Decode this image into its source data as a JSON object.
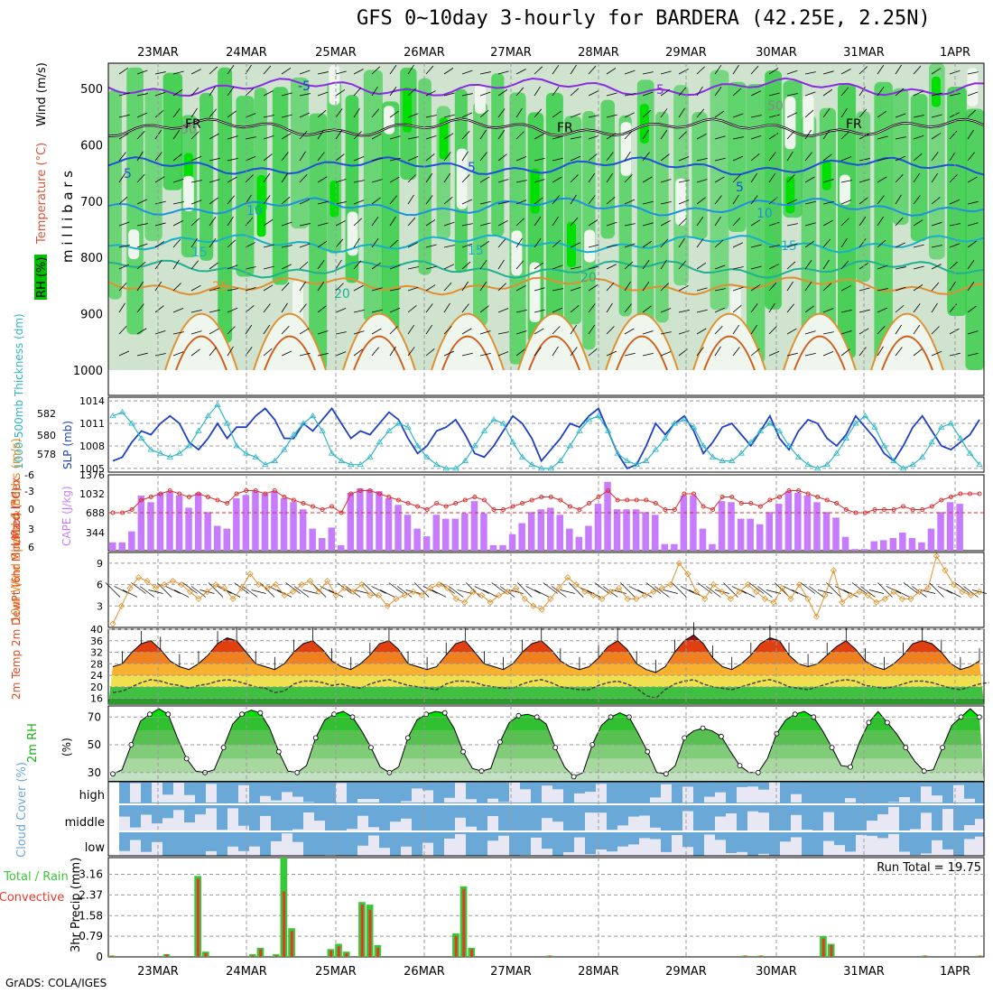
{
  "title": "GFS 0~10day 3-hourly for BARDERA (42.25E, 2.25N)",
  "credit": "GrADS: COLA/IGES",
  "colors": {
    "rh_green": "#2ecc40",
    "rh_light": "#b9dcb9",
    "slp": "#1e3fc7",
    "thickness": "#2bb6c6",
    "cape": "#c77cff",
    "lifted": "#d83030",
    "wind10": "#e0912a",
    "temp": "#e4451a",
    "cloud": "#6aa8d8",
    "rain_total": "#38c838",
    "rain_conv": "#e23a2a"
  },
  "chart_data": [
    {
      "type": "heatmap",
      "name_key": "upper",
      "ylabel": "m i l l i b a r s",
      "side_labels": [
        "RH (%)",
        "Temperature (°C)",
        "Wind (m/s)"
      ],
      "yticks": [
        500,
        600,
        700,
        800,
        900,
        1000
      ],
      "ylim": [
        455,
        1000
      ],
      "dates": [
        "23MAR",
        "24MAR",
        "25MAR",
        "26MAR",
        "27MAR",
        "28MAR",
        "29MAR",
        "30MAR",
        "31MAR",
        "1APR"
      ],
      "isotherms": [
        {
          "label": "-5",
          "p": 498,
          "color": "#8a2be2"
        },
        {
          "label": "FR",
          "p": 570,
          "color": "#000000"
        },
        {
          "label": "5",
          "p": 638,
          "color": "#1e50d8"
        },
        {
          "label": "10",
          "p": 710,
          "color": "#1e90e0"
        },
        {
          "label": "15",
          "p": 775,
          "color": "#18b0c8"
        },
        {
          "label": "20",
          "p": 820,
          "color": "#20b090"
        },
        {
          "label": "25",
          "p": 850,
          "color": "#e09030"
        }
      ],
      "contour_labels": [
        "-5",
        "-5",
        "FR",
        "FR",
        "FR",
        "5",
        "5",
        "5",
        "10",
        "10",
        "15",
        "15",
        "15",
        "20",
        "20",
        "25",
        "50",
        "50"
      ]
    },
    {
      "type": "line",
      "name_key": "slp",
      "ylabel_left": "1000-500mb Thickness (dm)",
      "ylabel_right": "SLP (mb)",
      "yticks_left": [
        578,
        580,
        582
      ],
      "yticks_right": [
        1005,
        1008,
        1011,
        1014
      ],
      "ylim": [
        1004.5,
        1014.5
      ],
      "series": [
        {
          "name": "SLP",
          "values": [
            1006,
            1006.5,
            1008.5,
            1010,
            1009.5,
            1011,
            1012,
            1011,
            1008.5,
            1007.5,
            1009,
            1011,
            1009,
            1010.5,
            1010.5,
            1012,
            1013,
            1011.5,
            1009,
            1009,
            1011,
            1010,
            1011.5,
            1013,
            1011,
            1009,
            1010,
            1009.5,
            1011,
            1012.5,
            1011.5,
            1009,
            1007,
            1008,
            1010,
            1010.5,
            1011.5,
            1009.5,
            1007,
            1006.5,
            1008,
            1010,
            1012,
            1011,
            1009,
            1006,
            1007.5,
            1009,
            1011,
            1010.5,
            1012,
            1013,
            1010,
            1007,
            1005,
            1005.5,
            1008,
            1011,
            1009.5,
            1011,
            1012,
            1010,
            1007,
            1008.5,
            1010.5,
            1011,
            1009.5,
            1008,
            1010,
            1012,
            1009,
            1007.5,
            1010,
            1011.5,
            1011,
            1009,
            1008,
            1009.5,
            1012,
            1010.5,
            1009,
            1007,
            1006,
            1008,
            1010.5,
            1012,
            1010,
            1008,
            1007.5,
            1008.5,
            1009.5,
            1011.5
          ]
        },
        {
          "name": "Thickness",
          "values": [
            1012,
            1012.5,
            1011,
            1009,
            1007.5,
            1007,
            1006.5,
            1007,
            1008,
            1010,
            1012,
            1013.5,
            1011,
            1008,
            1007,
            1006.5,
            1005.5,
            1006,
            1007.5,
            1009.5,
            1011,
            1012,
            1010,
            1007,
            1006,
            1005.5,
            1005.5,
            1006.5,
            1008.5,
            1010,
            1011,
            1010.5,
            1008,
            1006.5,
            1005.5,
            1005,
            1005,
            1006,
            1008,
            1010,
            1011.5,
            1011,
            1008.5,
            1006.5,
            1005.5,
            1005,
            1005,
            1006,
            1008,
            1010,
            1011.5,
            1012,
            1010,
            1007,
            1006,
            1005.5,
            1006,
            1007.5,
            1009,
            1011,
            1011.5,
            1010.5,
            1008,
            1006.5,
            1006,
            1006,
            1007,
            1008.5,
            1010,
            1011,
            1010,
            1008,
            1006.5,
            1005.5,
            1005,
            1005.5,
            1007,
            1009,
            1011,
            1012,
            1010.5,
            1008,
            1006,
            1005,
            1005.5,
            1006.5,
            1008.5,
            1010.5,
            1011,
            1009,
            1007,
            1005.5
          ]
        }
      ]
    },
    {
      "type": "bar",
      "name_key": "cape",
      "ylabel_left": "Lifted Index",
      "ylabel_right": "CAPE (J/kg)",
      "yticks_left": [
        "-6",
        "-3",
        "0",
        "3",
        "6"
      ],
      "yticks_right": [
        "1376",
        "1032",
        "688",
        "344"
      ],
      "cape_max": 1376,
      "cape": [
        150,
        150,
        350,
        1000,
        880,
        1050,
        1080,
        1000,
        780,
        1050,
        700,
        450,
        400,
        950,
        1010,
        1080,
        1030,
        1080,
        950,
        880,
        750,
        400,
        230,
        420,
        100,
        1050,
        1130,
        1110,
        1080,
        950,
        830,
        650,
        400,
        260,
        650,
        580,
        580,
        680,
        900,
        680,
        100,
        100,
        300,
        500,
        700,
        750,
        780,
        650,
        400,
        250,
        450,
        850,
        1250,
        750,
        750,
        750,
        700,
        650,
        120,
        120,
        1000,
        1000,
        400,
        120,
        900,
        880,
        580,
        580,
        480,
        700,
        850,
        1080,
        1050,
        1000,
        880,
        700,
        600,
        250,
        30,
        30,
        170,
        190,
        230,
        330,
        230,
        150,
        400,
        700,
        880,
        850,
        0,
        0
      ],
      "lifted": [
        0,
        0,
        -0.5,
        -2,
        -2.5,
        -3,
        -3.5,
        -3,
        -2.5,
        -3,
        -2.5,
        -2,
        -1.5,
        -3,
        -3.5,
        -3.5,
        -3,
        -3.5,
        -2.5,
        -2,
        -1.5,
        -1,
        -0.5,
        -1,
        0,
        -3,
        -3.5,
        -3.5,
        -3,
        -2.5,
        -2,
        -1.5,
        -1,
        -0.5,
        -1.5,
        -1,
        -1.5,
        -2,
        -2.5,
        -2,
        -0.5,
        -0.5,
        -1,
        -1.5,
        -2,
        -2.5,
        -2.5,
        -2,
        -1,
        -0.5,
        -1.5,
        -2.5,
        -3.5,
        -2,
        -2,
        -2,
        -2,
        -1.5,
        -0.5,
        -0.5,
        -3,
        -3,
        -1,
        -0.5,
        -2.5,
        -2.5,
        -1.5,
        -1.5,
        -1,
        -2,
        -2.5,
        -3.5,
        -3.5,
        -3,
        -2.5,
        -2,
        -1.5,
        -0.5,
        0,
        0,
        -0.5,
        -0.5,
        -0.5,
        -1,
        -0.5,
        -0.5,
        -1,
        -2,
        -2.5,
        -3,
        -3,
        -3
      ]
    },
    {
      "type": "line",
      "name_key": "wind",
      "ylabel": "10m Wind Speed & Barbs (m/s)",
      "yticks": [
        3,
        6,
        9
      ],
      "ylim": [
        0,
        10.5
      ],
      "values": [
        0.5,
        3,
        5.5,
        7,
        6.5,
        5.5,
        6,
        6.5,
        6,
        5,
        4,
        5,
        6,
        5.5,
        4,
        5.5,
        7.5,
        6,
        5.5,
        6,
        4.5,
        5,
        6,
        6.5,
        5,
        6.5,
        4.5,
        5.5,
        5,
        6,
        4.5,
        4.5,
        3,
        4,
        4.5,
        5,
        4.5,
        5.5,
        6,
        5.5,
        4,
        3.5,
        5,
        4.5,
        3.5,
        4.5,
        5,
        5.5,
        4,
        3,
        2.5,
        4,
        5.5,
        7,
        6,
        5,
        4.5,
        4,
        5,
        5.5,
        4,
        4,
        4.5,
        5,
        5.5,
        6,
        9,
        7.5,
        5,
        4,
        6,
        5,
        4,
        5,
        6,
        5,
        4,
        3.5,
        5.5,
        4,
        6,
        4,
        1.5,
        4.5,
        8,
        3.5,
        4.5,
        5,
        4.5,
        3.5,
        4,
        5,
        4,
        4,
        5,
        5.5,
        10,
        8,
        6,
        5,
        4.5,
        5
      ]
    },
    {
      "type": "area",
      "name_key": "temp",
      "ylabel": "2m Temp 2m DewPt (6hr Min/Max) (°C)",
      "yticks": [
        16,
        20,
        24,
        28,
        32,
        36,
        40
      ],
      "ylim": [
        14,
        40
      ],
      "temp": [
        27,
        28,
        32,
        35,
        36,
        33,
        29,
        27,
        26,
        28,
        31,
        35,
        37,
        36,
        32,
        28,
        27,
        26,
        28,
        32,
        35,
        36,
        33,
        29,
        27,
        26,
        28,
        31,
        35,
        36,
        33,
        28,
        27,
        26,
        27,
        31,
        35,
        36,
        32,
        28,
        27,
        26,
        28,
        32,
        35,
        36,
        33,
        29,
        27,
        26,
        27,
        30,
        34,
        36,
        33,
        28,
        26,
        25,
        27,
        32,
        36,
        38,
        35,
        30,
        27,
        26,
        28,
        31,
        35,
        37,
        36,
        31,
        28,
        27,
        28,
        31,
        34,
        36,
        33,
        29,
        27,
        26,
        28,
        31,
        35,
        36,
        35,
        32,
        28,
        26,
        27,
        29
      ],
      "dewpt": [
        18,
        18.5,
        20,
        21.5,
        22.5,
        22,
        21,
        20.5,
        19.5,
        20.5,
        21,
        22,
        22.5,
        22,
        21,
        20,
        19.5,
        18,
        18.5,
        21,
        22,
        22,
        21.5,
        20.5,
        21,
        20,
        19.5,
        21,
        22,
        22.5,
        21.5,
        20.5,
        20,
        19.5,
        19,
        21,
        22,
        22,
        21.5,
        20.5,
        20,
        19.5,
        19.5,
        21,
        22,
        22.5,
        21.5,
        20,
        19.5,
        19,
        19,
        20.5,
        21.5,
        22,
        21,
        19.5,
        17,
        16,
        19,
        21,
        22,
        22.5,
        21,
        20,
        19.5,
        19,
        20,
        21,
        22,
        22.5,
        21.5,
        20,
        19.5,
        19,
        20,
        21,
        22,
        22.5,
        22,
        20.5,
        20,
        19.5,
        20,
        21,
        22,
        22,
        21.5,
        20.5,
        19.5,
        19,
        20,
        21,
        21.5
      ]
    },
    {
      "type": "area",
      "name_key": "rh",
      "ylabel": "2m RH",
      "unit": "(%)",
      "yticks": [
        30,
        50,
        70
      ],
      "ylim": [
        24,
        78
      ],
      "values": [
        29,
        32,
        50,
        67,
        72,
        76,
        72,
        55,
        40,
        31,
        30,
        32,
        48,
        65,
        72,
        75,
        73,
        62,
        45,
        31,
        30,
        35,
        55,
        68,
        72,
        74,
        70,
        60,
        48,
        34,
        30,
        34,
        55,
        68,
        72,
        74,
        73,
        62,
        45,
        33,
        31,
        33,
        52,
        66,
        71,
        72,
        70,
        65,
        48,
        34,
        27,
        30,
        50,
        64,
        70,
        73,
        70,
        58,
        45,
        30,
        29,
        35,
        55,
        60,
        62,
        60,
        56,
        45,
        35,
        30,
        30,
        40,
        58,
        68,
        72,
        74,
        70,
        60,
        48,
        35,
        34,
        52,
        66,
        74,
        66,
        58,
        48,
        38,
        31,
        32,
        48,
        64,
        70,
        76,
        70
      ]
    },
    {
      "type": "heatmap",
      "name_key": "cloud",
      "ylabel": "Cloud Cover (%)",
      "levels": [
        "high",
        "middle",
        "low"
      ]
    },
    {
      "type": "bar",
      "name_key": "precip",
      "ylabel_left": "Total / Rain",
      "ylabel_conv": "Convective",
      "ylabel": "3hr Precip (mm)",
      "yticks": [
        "0",
        "0.79",
        "1.58",
        "2.37",
        "3.16"
      ],
      "ylim": [
        0,
        3.8
      ],
      "run_total": "Run Total = 19.75",
      "total": [
        0.05,
        0,
        0,
        0,
        0,
        0,
        0,
        0.1,
        0,
        0,
        0,
        3.1,
        0.2,
        0,
        0,
        0,
        0,
        0,
        0.1,
        0.35,
        0,
        0.1,
        3.8,
        1.1,
        0,
        0,
        0,
        0,
        0.3,
        0.5,
        0.2,
        0,
        2.1,
        2.0,
        0.45,
        0,
        0,
        0,
        0,
        0,
        0,
        0,
        0,
        0,
        0.9,
        2.7,
        0.35,
        0,
        0,
        0,
        0,
        0,
        0,
        0,
        0,
        0,
        0.05,
        0,
        0,
        0,
        0,
        0,
        0,
        0,
        0,
        0,
        0,
        0,
        0,
        0,
        0,
        0,
        0,
        0,
        0,
        0,
        0,
        0,
        0,
        0,
        0,
        0.05,
        0,
        0.05,
        0,
        0,
        0,
        0,
        0,
        0,
        0,
        0.8,
        0.5,
        0,
        0,
        0,
        0,
        0,
        0,
        0,
        0,
        0,
        0,
        0,
        0.05,
        0,
        0,
        0,
        0,
        0,
        0,
        0.05
      ],
      "conv": [
        0.05,
        0,
        0,
        0,
        0,
        0,
        0,
        0.1,
        0,
        0,
        0,
        3.0,
        0.15,
        0,
        0,
        0,
        0,
        0,
        0.05,
        0.3,
        0,
        0.05,
        2.5,
        1.0,
        0,
        0,
        0,
        0,
        0.25,
        0.4,
        0.15,
        0,
        2.0,
        1.8,
        0.35,
        0,
        0,
        0,
        0,
        0,
        0,
        0,
        0,
        0,
        0.8,
        2.6,
        0.3,
        0,
        0,
        0,
        0,
        0,
        0,
        0,
        0,
        0,
        0.05,
        0,
        0,
        0,
        0,
        0,
        0,
        0,
        0,
        0,
        0,
        0,
        0,
        0,
        0,
        0,
        0,
        0,
        0,
        0,
        0,
        0,
        0,
        0,
        0,
        0.05,
        0,
        0.05,
        0,
        0,
        0,
        0,
        0,
        0,
        0,
        0.7,
        0.45,
        0,
        0,
        0,
        0,
        0,
        0,
        0,
        0,
        0,
        0,
        0,
        0.05,
        0,
        0,
        0,
        0,
        0,
        0,
        0.05
      ]
    }
  ]
}
